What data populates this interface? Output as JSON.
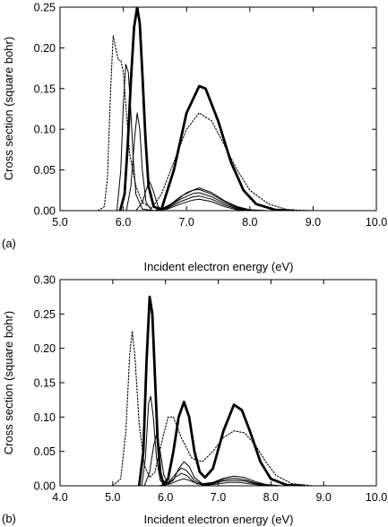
{
  "chart_data": [
    {
      "type": "line",
      "panel_label": "(a)",
      "xlabel": "Incident electron energy (eV)",
      "ylabel": "Cross section (square bohr)",
      "xlim": [
        5.0,
        10.0
      ],
      "ylim": [
        0,
        0.25
      ],
      "xticks": [
        "5.0",
        "6.0",
        "7.0",
        "8.0",
        "9.0",
        "10.0"
      ],
      "yticks": [
        "0.00",
        "0.05",
        "0.10",
        "0.15",
        "0.20",
        "0.25"
      ],
      "grid": false,
      "legend": "none",
      "series": [
        {
          "style": "dotted",
          "values": [
            [
              5.6,
              0
            ],
            [
              5.7,
              0.005
            ],
            [
              5.75,
              0.04
            ],
            [
              5.8,
              0.15
            ],
            [
              5.84,
              0.215
            ],
            [
              5.88,
              0.2
            ],
            [
              5.92,
              0.185
            ],
            [
              5.96,
              0.185
            ],
            [
              6.0,
              0.17
            ],
            [
              6.05,
              0.12
            ],
            [
              6.1,
              0.07
            ],
            [
              6.2,
              0.03
            ],
            [
              6.3,
              0.01
            ],
            [
              6.45,
              0.003
            ],
            [
              6.6,
              0.02
            ],
            [
              6.8,
              0.06
            ],
            [
              7.0,
              0.1
            ],
            [
              7.2,
              0.12
            ],
            [
              7.4,
              0.11
            ],
            [
              7.6,
              0.08
            ],
            [
              7.8,
              0.05
            ],
            [
              8.0,
              0.025
            ],
            [
              8.3,
              0.008
            ],
            [
              8.6,
              0.001
            ],
            [
              9.0,
              0
            ]
          ]
        },
        {
          "style": "bold",
          "values": [
            [
              5.95,
              0
            ],
            [
              6.02,
              0.02
            ],
            [
              6.07,
              0.08
            ],
            [
              6.12,
              0.16
            ],
            [
              6.17,
              0.225
            ],
            [
              6.22,
              0.25
            ],
            [
              6.26,
              0.23
            ],
            [
              6.3,
              0.17
            ],
            [
              6.35,
              0.09
            ],
            [
              6.4,
              0.03
            ],
            [
              6.48,
              0.005
            ],
            [
              6.6,
              0.001
            ],
            [
              6.8,
              0.05
            ],
            [
              7.0,
              0.12
            ],
            [
              7.2,
              0.153
            ],
            [
              7.3,
              0.15
            ],
            [
              7.5,
              0.11
            ],
            [
              7.7,
              0.06
            ],
            [
              7.9,
              0.025
            ],
            [
              8.1,
              0.008
            ],
            [
              8.4,
              0.001
            ],
            [
              8.7,
              0
            ]
          ]
        },
        {
          "style": "solid",
          "values": [
            [
              5.9,
              0
            ],
            [
              5.96,
              0.05
            ],
            [
              6.0,
              0.13
            ],
            [
              6.04,
              0.18
            ],
            [
              6.08,
              0.17
            ],
            [
              6.12,
              0.12
            ],
            [
              6.16,
              0.06
            ],
            [
              6.2,
              0.02
            ],
            [
              6.3,
              0.002
            ],
            [
              6.5,
              0
            ]
          ]
        },
        {
          "style": "solid",
          "values": [
            [
              6.05,
              0
            ],
            [
              6.12,
              0.03
            ],
            [
              6.18,
              0.09
            ],
            [
              6.22,
              0.12
            ],
            [
              6.26,
              0.1
            ],
            [
              6.3,
              0.05
            ],
            [
              6.36,
              0.01
            ],
            [
              6.45,
              0
            ]
          ]
        },
        {
          "style": "solid",
          "values": [
            [
              6.2,
              0
            ],
            [
              6.3,
              0.01
            ],
            [
              6.38,
              0.03
            ],
            [
              6.42,
              0.035
            ],
            [
              6.47,
              0.025
            ],
            [
              6.55,
              0.005
            ],
            [
              6.6,
              0.002
            ],
            [
              6.8,
              0.01
            ],
            [
              7.0,
              0.022
            ],
            [
              7.2,
              0.028
            ],
            [
              7.4,
              0.022
            ],
            [
              7.6,
              0.012
            ],
            [
              7.8,
              0.005
            ],
            [
              8.0,
              0.001
            ],
            [
              8.3,
              0
            ]
          ]
        },
        {
          "style": "solid",
          "values": [
            [
              6.5,
              0
            ],
            [
              6.7,
              0.005
            ],
            [
              6.9,
              0.017
            ],
            [
              7.1,
              0.025
            ],
            [
              7.2,
              0.026
            ],
            [
              7.4,
              0.02
            ],
            [
              7.6,
              0.011
            ],
            [
              7.8,
              0.004
            ],
            [
              8.0,
              0.001
            ],
            [
              8.2,
              0
            ]
          ]
        },
        {
          "style": "solid",
          "values": [
            [
              6.5,
              0
            ],
            [
              6.7,
              0.004
            ],
            [
              6.9,
              0.014
            ],
            [
              7.1,
              0.021
            ],
            [
              7.2,
              0.022
            ],
            [
              7.4,
              0.017
            ],
            [
              7.6,
              0.009
            ],
            [
              7.8,
              0.003
            ],
            [
              8.1,
              0
            ]
          ]
        },
        {
          "style": "solid",
          "values": [
            [
              6.5,
              0
            ],
            [
              6.7,
              0.003
            ],
            [
              6.9,
              0.011
            ],
            [
              7.1,
              0.017
            ],
            [
              7.2,
              0.018
            ],
            [
              7.4,
              0.014
            ],
            [
              7.6,
              0.007
            ],
            [
              7.8,
              0.002
            ],
            [
              8.1,
              0
            ]
          ]
        },
        {
          "style": "solid",
          "values": [
            [
              6.5,
              0
            ],
            [
              6.7,
              0.002
            ],
            [
              6.9,
              0.008
            ],
            [
              7.1,
              0.013
            ],
            [
              7.2,
              0.014
            ],
            [
              7.4,
              0.011
            ],
            [
              7.6,
              0.005
            ],
            [
              7.8,
              0.001
            ],
            [
              8.0,
              0
            ]
          ]
        }
      ]
    },
    {
      "type": "line",
      "panel_label": "(b)",
      "xlabel": "Incident electron energy (eV)",
      "ylabel": "Cross section (square bohr)",
      "xlim": [
        4.0,
        10.0
      ],
      "ylim": [
        0,
        0.3
      ],
      "xticks": [
        "4.0",
        "5.0",
        "6.0",
        "7.0",
        "8.0",
        "9.0",
        "10.0"
      ],
      "yticks": [
        "0.00",
        "0.05",
        "0.10",
        "0.15",
        "0.20",
        "0.25",
        "0.30"
      ],
      "grid": false,
      "legend": "none",
      "series": [
        {
          "style": "dotted",
          "values": [
            [
              5.0,
              0
            ],
            [
              5.15,
              0.01
            ],
            [
              5.25,
              0.08
            ],
            [
              5.32,
              0.19
            ],
            [
              5.37,
              0.225
            ],
            [
              5.42,
              0.19
            ],
            [
              5.5,
              0.09
            ],
            [
              5.6,
              0.03
            ],
            [
              5.7,
              0.012
            ],
            [
              5.8,
              0.02
            ],
            [
              5.95,
              0.07
            ],
            [
              6.05,
              0.1
            ],
            [
              6.15,
              0.1
            ],
            [
              6.3,
              0.07
            ],
            [
              6.5,
              0.04
            ],
            [
              6.7,
              0.035
            ],
            [
              6.9,
              0.05
            ],
            [
              7.1,
              0.07
            ],
            [
              7.3,
              0.08
            ],
            [
              7.5,
              0.077
            ],
            [
              7.7,
              0.06
            ],
            [
              7.9,
              0.035
            ],
            [
              8.1,
              0.015
            ],
            [
              8.4,
              0.003
            ],
            [
              8.8,
              0
            ]
          ]
        },
        {
          "style": "bold",
          "values": [
            [
              5.5,
              0
            ],
            [
              5.58,
              0.05
            ],
            [
              5.64,
              0.18
            ],
            [
              5.7,
              0.275
            ],
            [
              5.75,
              0.25
            ],
            [
              5.8,
              0.16
            ],
            [
              5.85,
              0.07
            ],
            [
              5.9,
              0.02
            ],
            [
              5.96,
              0.003
            ],
            [
              6.05,
              0.01
            ],
            [
              6.15,
              0.05
            ],
            [
              6.25,
              0.1
            ],
            [
              6.35,
              0.122
            ],
            [
              6.45,
              0.1
            ],
            [
              6.55,
              0.05
            ],
            [
              6.65,
              0.02
            ],
            [
              6.75,
              0.012
            ],
            [
              6.9,
              0.025
            ],
            [
              7.1,
              0.08
            ],
            [
              7.3,
              0.118
            ],
            [
              7.45,
              0.11
            ],
            [
              7.6,
              0.08
            ],
            [
              7.8,
              0.035
            ],
            [
              8.0,
              0.01
            ],
            [
              8.3,
              0.001
            ],
            [
              8.6,
              0
            ]
          ]
        },
        {
          "style": "solid",
          "values": [
            [
              5.55,
              0
            ],
            [
              5.62,
              0.04
            ],
            [
              5.68,
              0.12
            ],
            [
              5.72,
              0.13
            ],
            [
              5.77,
              0.1
            ],
            [
              5.83,
              0.04
            ],
            [
              5.9,
              0.008
            ],
            [
              6.0,
              0
            ]
          ]
        },
        {
          "style": "solid",
          "values": [
            [
              5.6,
              0
            ],
            [
              5.7,
              0.02
            ],
            [
              5.78,
              0.06
            ],
            [
              5.83,
              0.075
            ],
            [
              5.9,
              0.05
            ],
            [
              5.97,
              0.015
            ],
            [
              6.05,
              0.003
            ],
            [
              6.15,
              0.008
            ],
            [
              6.25,
              0.025
            ],
            [
              6.35,
              0.035
            ],
            [
              6.45,
              0.028
            ],
            [
              6.55,
              0.012
            ],
            [
              6.7,
              0.003
            ],
            [
              6.9,
              0.005
            ],
            [
              7.1,
              0.011
            ],
            [
              7.3,
              0.014
            ],
            [
              7.5,
              0.012
            ],
            [
              7.7,
              0.006
            ],
            [
              7.9,
              0.002
            ],
            [
              8.2,
              0
            ]
          ]
        },
        {
          "style": "solid",
          "values": [
            [
              5.9,
              0
            ],
            [
              6.05,
              0.005
            ],
            [
              6.2,
              0.018
            ],
            [
              6.3,
              0.026
            ],
            [
              6.4,
              0.022
            ],
            [
              6.55,
              0.008
            ],
            [
              6.7,
              0.002
            ],
            [
              6.9,
              0.004
            ],
            [
              7.1,
              0.009
            ],
            [
              7.3,
              0.011
            ],
            [
              7.5,
              0.009
            ],
            [
              7.7,
              0.004
            ],
            [
              8.0,
              0
            ]
          ]
        },
        {
          "style": "solid",
          "values": [
            [
              5.9,
              0
            ],
            [
              6.05,
              0.004
            ],
            [
              6.2,
              0.013
            ],
            [
              6.3,
              0.018
            ],
            [
              6.4,
              0.015
            ],
            [
              6.55,
              0.005
            ],
            [
              6.7,
              0.001
            ],
            [
              6.9,
              0.003
            ],
            [
              7.1,
              0.007
            ],
            [
              7.3,
              0.008
            ],
            [
              7.5,
              0.007
            ],
            [
              7.7,
              0.003
            ],
            [
              8.0,
              0
            ]
          ]
        },
        {
          "style": "solid",
          "values": [
            [
              5.9,
              0
            ],
            [
              6.1,
              0.003
            ],
            [
              6.25,
              0.008
            ],
            [
              6.35,
              0.01
            ],
            [
              6.45,
              0.008
            ],
            [
              6.6,
              0.003
            ],
            [
              6.8,
              0.001
            ],
            [
              7.0,
              0.003
            ],
            [
              7.2,
              0.005
            ],
            [
              7.4,
              0.005
            ],
            [
              7.6,
              0.003
            ],
            [
              7.9,
              0
            ]
          ]
        }
      ]
    }
  ]
}
